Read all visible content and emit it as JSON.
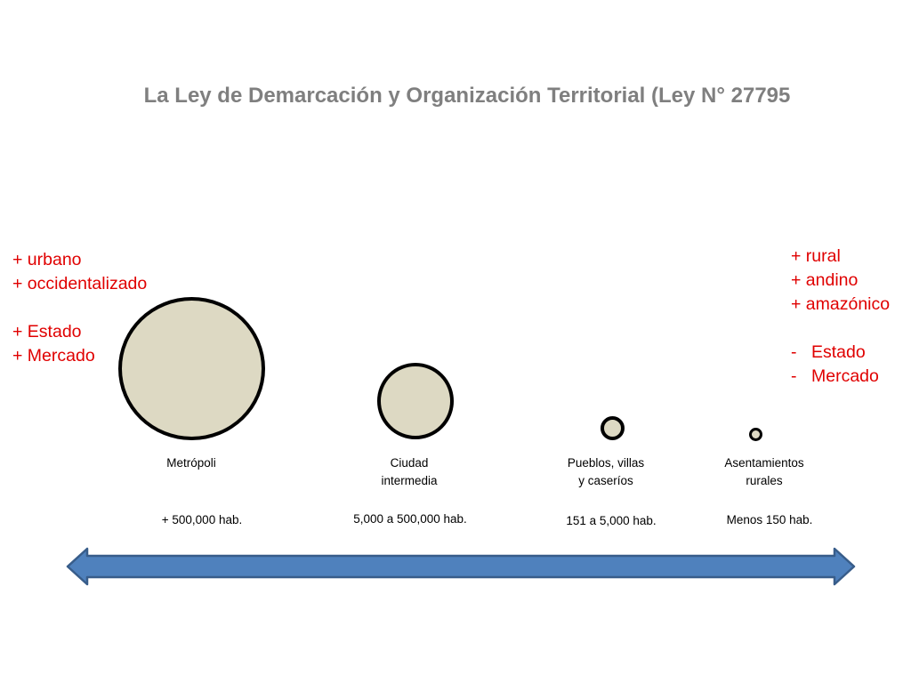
{
  "title": "La Ley de Demarcación y Organización Territorial (Ley N° 27795",
  "left_list": [
    "+ urbano",
    "+ occidentalizado",
    "",
    "+ Estado",
    "+ Mercado"
  ],
  "right_list": [
    {
      "bullet": "",
      "text": "+ rural"
    },
    {
      "bullet": "",
      "text": "+ andino"
    },
    {
      "bullet": "",
      "text": "+ amazónico"
    },
    {
      "bullet": "",
      "text": ""
    },
    {
      "bullet": "-",
      "text": "Estado"
    },
    {
      "bullet": "-",
      "text": "Mercado"
    }
  ],
  "categories": [
    {
      "label_lines": [
        "Metrópoli"
      ],
      "range": "+ 500,000 hab."
    },
    {
      "label_lines": [
        "Ciudad",
        "intermedia"
      ],
      "range": "5,000 a 500,000 hab."
    },
    {
      "label_lines": [
        "Pueblos, villas",
        "y caseríos"
      ],
      "range": "151 a 5,000 hab."
    },
    {
      "label_lines": [
        "Asentamientos",
        "rurales"
      ],
      "range": "Menos 150 hab."
    }
  ],
  "colors": {
    "title": "#7f7f7f",
    "accent_text": "#e00000",
    "circle_fill": "#ddd9c3",
    "circle_stroke": "#000000",
    "arrow_fill": "#4f81bd",
    "arrow_stroke": "#385d8a"
  }
}
